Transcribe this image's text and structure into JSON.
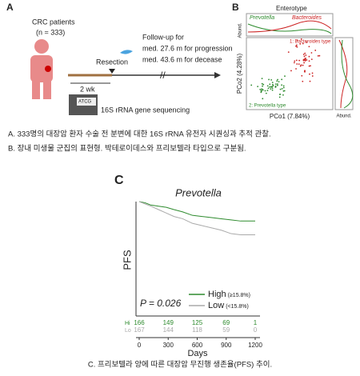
{
  "panel_a": {
    "label": "A",
    "cohort": "CRC patients",
    "n": "(n = 333)",
    "resection": "Resection",
    "follow_up": [
      "Follow-up for",
      "med. 27.6 m for progression",
      "med. 43.6 m for decease"
    ],
    "interval": "2 wk",
    "kit": "ATCG",
    "sequencing": "16S rRNA gene sequencing"
  },
  "panel_b": {
    "label": "B",
    "title": "Enterotype",
    "top_labels": [
      "Prevotella",
      "Bacteroides"
    ],
    "abund": "Abund.",
    "cluster_labels": [
      "1: Bacteroides type",
      "2: Prevotella type"
    ],
    "xlabel": "PCo1 (7.84%)",
    "ylabel": "PCo2 (4.28%)"
  },
  "captions": [
    "A. 333명의 대장암 환자 수술 전 분변에 대한 16S rRNA 유전자 시퀀싱과 추적 관찰.",
    "B. 장내 미생물 군집의 표현형. 박테로이데스와 프리보텔라 타입으로 구분됨.",
    "C. 프리보텔라 양에 따른 대장암 무진행 생존율(PFS) 추이."
  ],
  "chart_data": {
    "type": "line",
    "panel_label": "C",
    "title": "Prevotella",
    "xlabel": "Days",
    "ylabel": "PFS",
    "annotation": "P = 0.026",
    "x": [
      0,
      60,
      120,
      200,
      280,
      360,
      450,
      550,
      650,
      750,
      850,
      950,
      1050,
      1150,
      1200
    ],
    "series": [
      {
        "name": "High",
        "threshold": "(≥15.8%)",
        "risk_label": "Hi",
        "color": "#2e8b2e",
        "values": [
          1,
          0.99,
          0.97,
          0.96,
          0.95,
          0.93,
          0.91,
          0.88,
          0.87,
          0.86,
          0.85,
          0.84,
          0.83,
          0.83,
          0.83
        ],
        "at_risk": [
          166,
          149,
          125,
          69,
          1
        ]
      },
      {
        "name": "Low",
        "threshold": "(<15.8%)",
        "risk_label": "Lo",
        "color": "#aaaaaa",
        "values": [
          1,
          0.98,
          0.96,
          0.93,
          0.9,
          0.87,
          0.85,
          0.81,
          0.79,
          0.77,
          0.75,
          0.72,
          0.71,
          0.71,
          0.71
        ],
        "at_risk": [
          167,
          144,
          118,
          59,
          0
        ]
      }
    ],
    "xlim": [
      0,
      1200
    ],
    "xticks": [
      0,
      300,
      600,
      900,
      1200
    ],
    "ylim": [
      0,
      1
    ]
  }
}
